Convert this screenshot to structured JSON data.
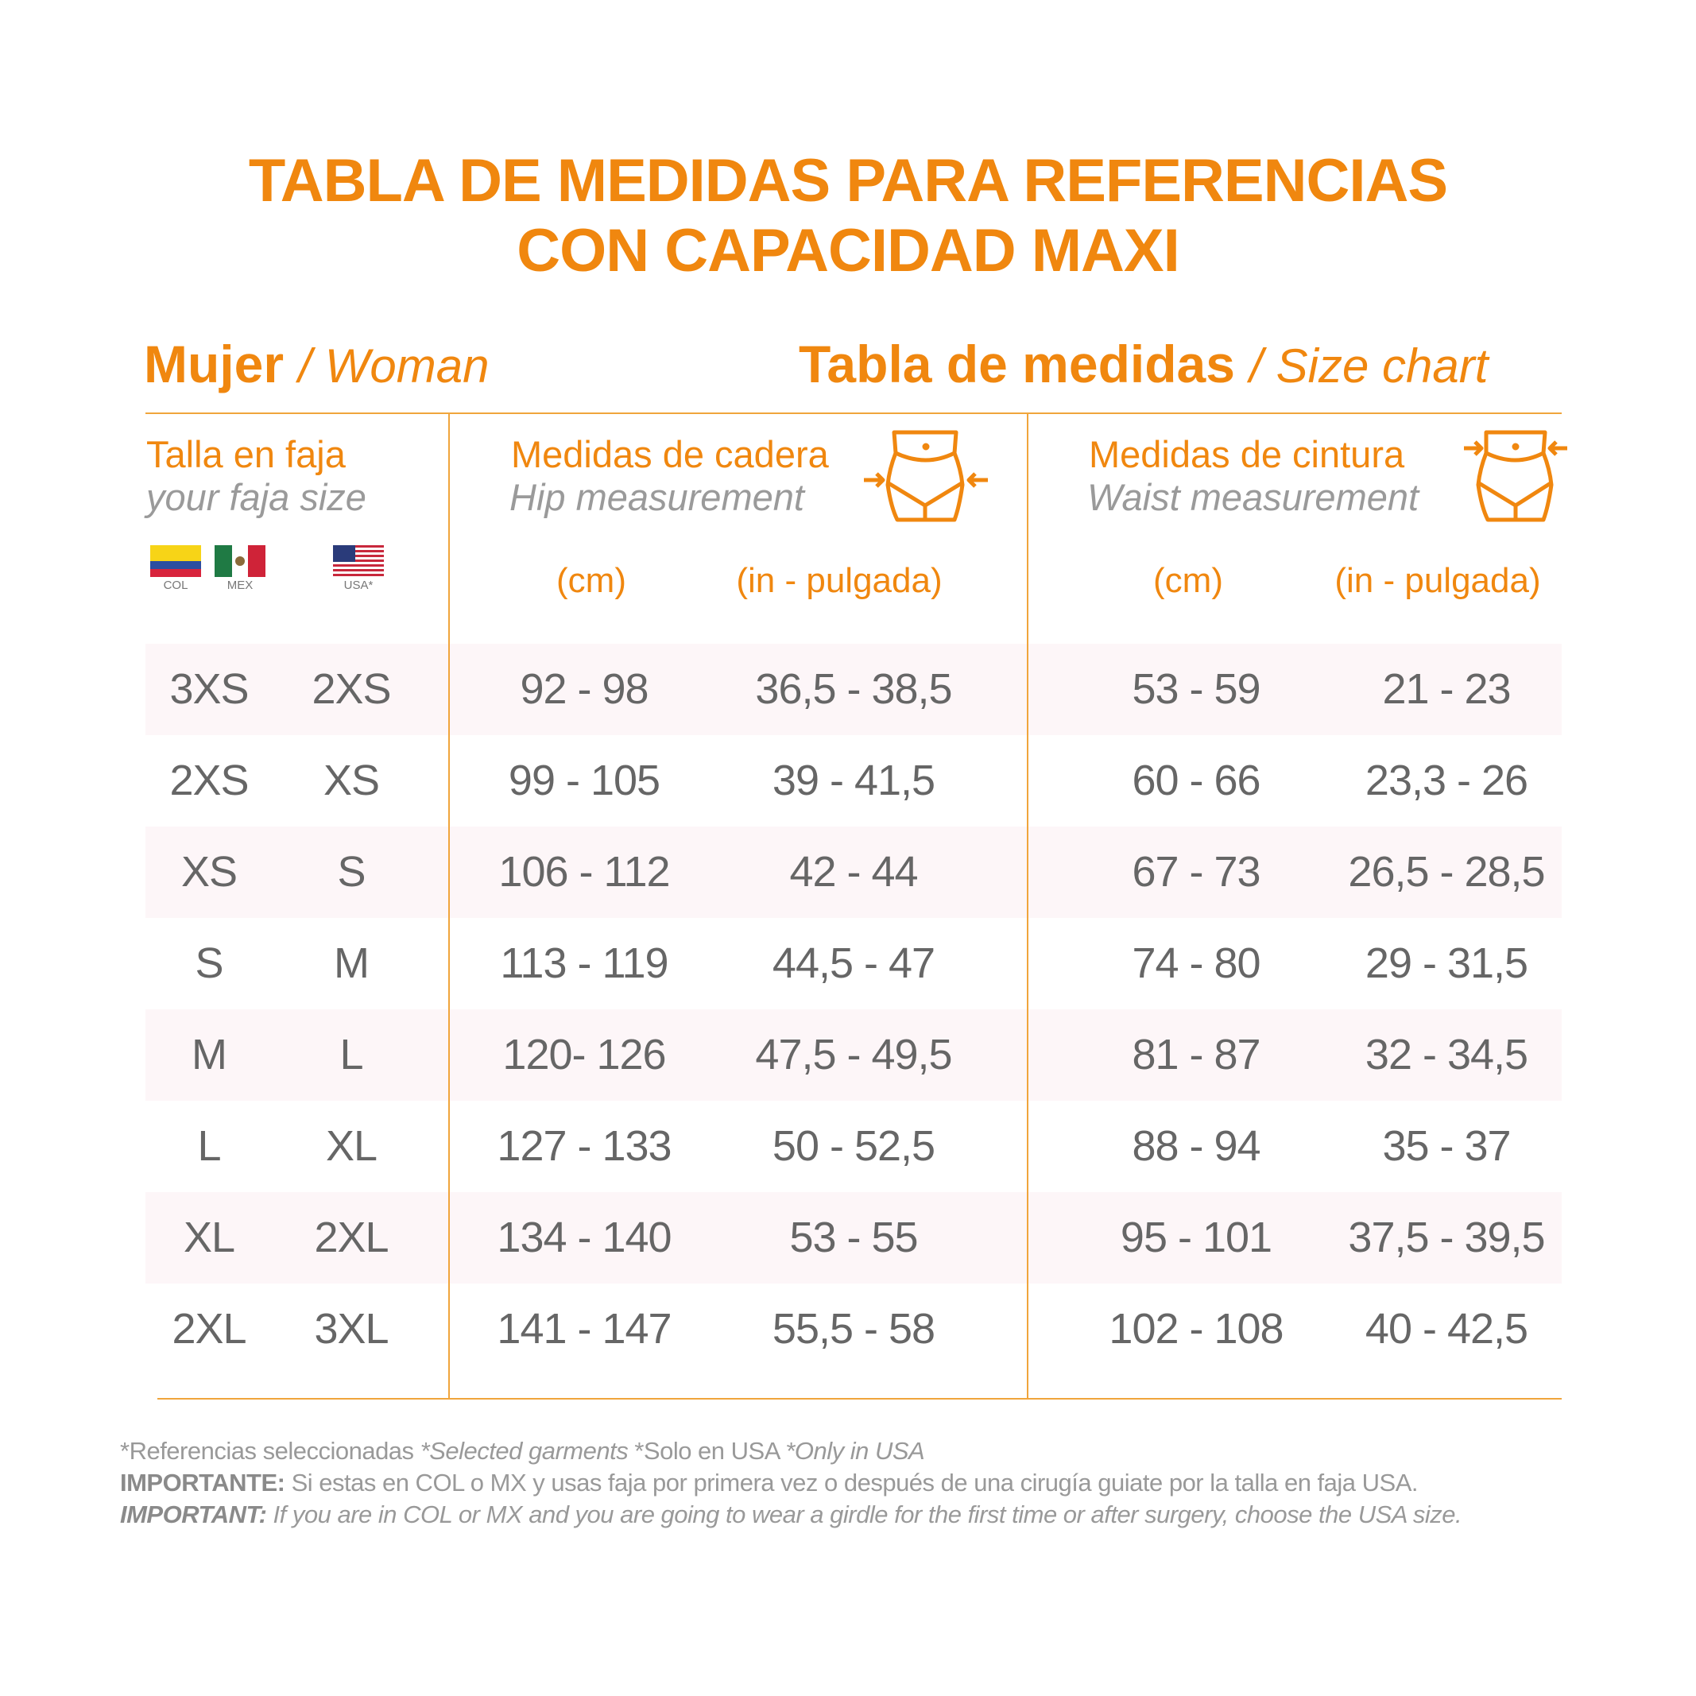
{
  "title": {
    "line1": "TABLA DE MEDIDAS PARA REFERENCIAS",
    "line2": "CON CAPACIDAD MAXI"
  },
  "subheader": {
    "left_bold": "Mujer",
    "left_italic": "/ Woman",
    "right_bold": "Tabla de medidas",
    "right_italic": "/ Size chart"
  },
  "columns": {
    "size": {
      "title": "Talla en faja",
      "subtitle": "your faja size",
      "flags": [
        {
          "label": "COL",
          "icon": "colombia-flag"
        },
        {
          "label": "MEX",
          "icon": "mexico-flag"
        },
        {
          "label": "USA*",
          "icon": "usa-flag"
        }
      ]
    },
    "hip": {
      "title": "Medidas de cadera",
      "subtitle": "Hip measurement",
      "icon": "hip-measure-icon",
      "unit_cm": "(cm)",
      "unit_in": "(in - pulgada)"
    },
    "waist": {
      "title": "Medidas de cintura",
      "subtitle": "Waist measurement",
      "icon": "waist-measure-icon",
      "unit_cm": "(cm)",
      "unit_in": "(in - pulgada)"
    }
  },
  "rows": [
    [
      "3XS",
      "2XS",
      "92 - 98",
      "36,5 - 38,5",
      "53 - 59",
      "21 - 23"
    ],
    [
      "2XS",
      "XS",
      "99 - 105",
      "39 - 41,5",
      "60 - 66",
      "23,3 - 26"
    ],
    [
      "XS",
      "S",
      "106 - 112",
      "42 - 44",
      "67 - 73",
      "26,5 - 28,5"
    ],
    [
      "S",
      "M",
      "113 - 119",
      "44,5 - 47",
      "74 - 80",
      "29 - 31,5"
    ],
    [
      "M",
      "L",
      "120- 126",
      "47,5 - 49,5",
      "81 - 87",
      "32 - 34,5"
    ],
    [
      "L",
      "XL",
      "127 - 133",
      "50 - 52,5",
      "88 - 94",
      "35 - 37"
    ],
    [
      "XL",
      "2XL",
      "134 - 140",
      "53 - 55",
      "95 - 101",
      "37,5 - 39,5"
    ],
    [
      "2XL",
      "3XL",
      "141 - 147",
      "55,5 - 58",
      "102 - 108",
      "40 - 42,5"
    ]
  ],
  "footer": {
    "line1": "*Referencias seleccionadas ",
    "line1_italic": "*Selected garments",
    "line1b": " *Solo en USA ",
    "line1b_italic": "*Only in USA",
    "line2_bold": "IMPORTANTE:",
    "line2": " Si estas en COL o MX y usas faja por primera vez o después de una cirugía guiate por la talla en faja USA.",
    "line3_bold": "IMPORTANT:",
    "line3": " If you are in COL or MX and you are going to wear a girdle for the first time or after surgery, choose the USA size."
  },
  "colors": {
    "accent": "#f0870f",
    "text": "#666666",
    "row_shade": "#fdf6f8"
  }
}
